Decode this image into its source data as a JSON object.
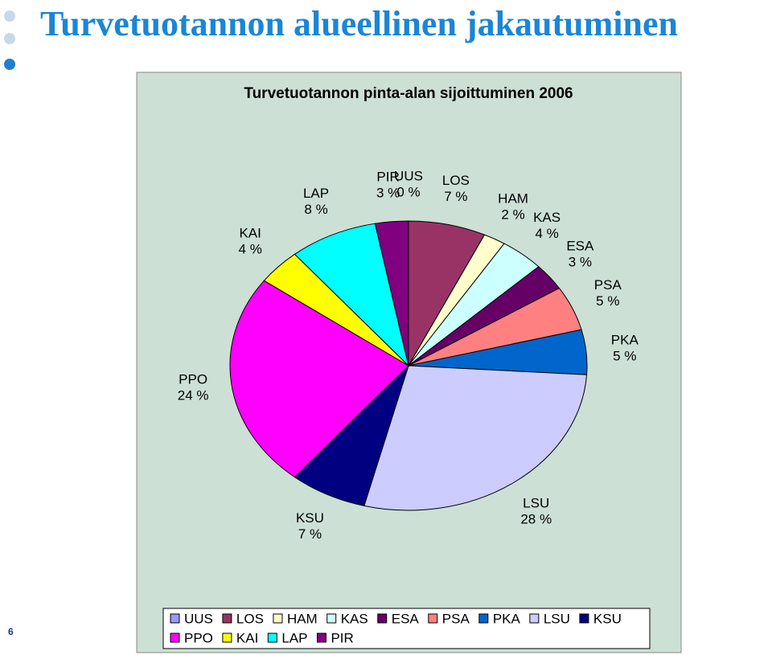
{
  "slide_title": "Turvetuotannon alueellinen jakautuminen",
  "page_number": "6",
  "chart_data": {
    "type": "pie",
    "title": "Turvetuotannon pinta-alan sijoittuminen 2006",
    "categories": [
      "UUS",
      "LOS",
      "HAM",
      "KAS",
      "ESA",
      "PSA",
      "PKA",
      "LSU",
      "KSU",
      "PPO",
      "KAI",
      "LAP",
      "PIR"
    ],
    "values": [
      0,
      7,
      2,
      4,
      3,
      5,
      5,
      28,
      7,
      24,
      4,
      8,
      3
    ],
    "value_labels": [
      "0 %",
      "7 %",
      "2 %",
      "4 %",
      "3 %",
      "5 %",
      "5 %",
      "28 %",
      "7 %",
      "24 %",
      "4 %",
      "8 %",
      "3 %"
    ],
    "colors": [
      "#9999ff",
      "#993366",
      "#ffffcc",
      "#ccffff",
      "#660066",
      "#ff8080",
      "#0066cc",
      "#ccccff",
      "#000080",
      "#ff00ff",
      "#ffff00",
      "#00ffff",
      "#800080"
    ],
    "legend": "bottom"
  }
}
